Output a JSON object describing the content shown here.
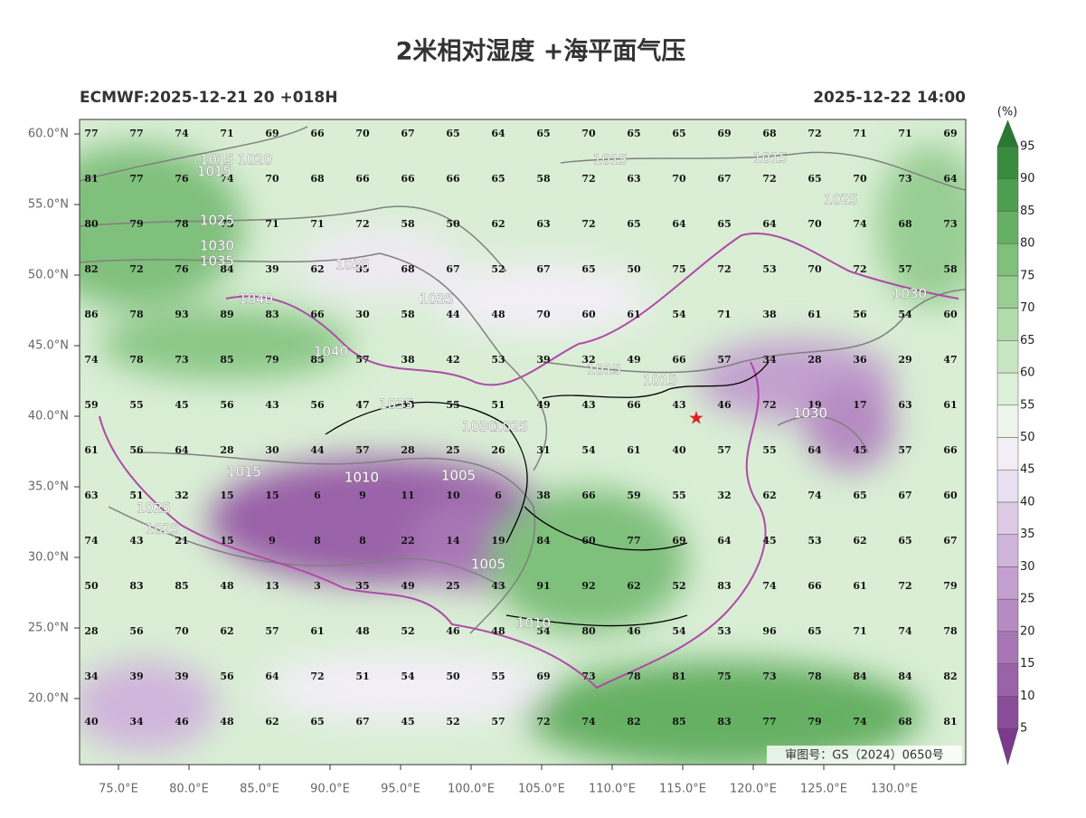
{
  "header": {
    "title": "2米相对湿度 +海平面气压",
    "left": "ECMWF:2025-12-21 20 +018H",
    "right": "2025-12-22 14:00"
  },
  "map": {
    "lat_ticks": [
      {
        "value": 60,
        "label": "60.0°N"
      },
      {
        "value": 55,
        "label": "55.0°N"
      },
      {
        "value": 50,
        "label": "50.0°N"
      },
      {
        "value": 45,
        "label": "45.0°N"
      },
      {
        "value": 40,
        "label": "40.0°N"
      },
      {
        "value": 35,
        "label": "35.0°N"
      },
      {
        "value": 30,
        "label": "30.0°N"
      },
      {
        "value": 25,
        "label": "25.0°N"
      },
      {
        "value": 20,
        "label": "20.0°N"
      }
    ],
    "lon_ticks": [
      {
        "value": 75,
        "label": "75.0°E"
      },
      {
        "value": 80,
        "label": "80.0°E"
      },
      {
        "value": 85,
        "label": "85.0°E"
      },
      {
        "value": 90,
        "label": "90.0°E"
      },
      {
        "value": 95,
        "label": "95.0°E"
      },
      {
        "value": 100,
        "label": "100.0°E"
      },
      {
        "value": 105,
        "label": "105.0°E"
      },
      {
        "value": 110,
        "label": "110.0°E"
      },
      {
        "value": 115,
        "label": "115.0°E"
      },
      {
        "value": 120,
        "label": "120.0°E"
      },
      {
        "value": 125,
        "label": "125.0°E"
      },
      {
        "value": 130,
        "label": "130.0°E"
      }
    ],
    "humidity_grid": [
      [
        77,
        77,
        74,
        71,
        69,
        66,
        70,
        67,
        65,
        64,
        65,
        70,
        65,
        65,
        69,
        68,
        72,
        71,
        71,
        69
      ],
      [
        81,
        77,
        76,
        74,
        70,
        68,
        66,
        66,
        66,
        65,
        58,
        72,
        63,
        70,
        67,
        72,
        65,
        70,
        73,
        64
      ],
      [
        80,
        79,
        78,
        73,
        71,
        71,
        72,
        58,
        50,
        62,
        63,
        72,
        65,
        64,
        65,
        64,
        70,
        74,
        68,
        73
      ],
      [
        82,
        72,
        76,
        84,
        39,
        62,
        35,
        68,
        67,
        52,
        67,
        65,
        50,
        75,
        72,
        53,
        70,
        72,
        57,
        58
      ],
      [
        86,
        78,
        93,
        89,
        83,
        66,
        30,
        58,
        44,
        48,
        70,
        60,
        61,
        54,
        71,
        38,
        61,
        56,
        54,
        60
      ],
      [
        74,
        78,
        73,
        85,
        79,
        85,
        57,
        38,
        42,
        53,
        39,
        32,
        49,
        66,
        57,
        34,
        28,
        36,
        29,
        47
      ],
      [
        59,
        55,
        45,
        56,
        43,
        56,
        47,
        35,
        55,
        51,
        49,
        43,
        66,
        43,
        46,
        72,
        19,
        17,
        63,
        61
      ],
      [
        61,
        56,
        64,
        28,
        30,
        44,
        57,
        28,
        25,
        26,
        31,
        54,
        61,
        40,
        57,
        55,
        64,
        45,
        57,
        66
      ],
      [
        63,
        51,
        32,
        15,
        15,
        6,
        9,
        11,
        10,
        6,
        38,
        66,
        59,
        55,
        32,
        62,
        74,
        65,
        67,
        60
      ],
      [
        74,
        43,
        21,
        15,
        9,
        8,
        8,
        22,
        14,
        19,
        84,
        60,
        77,
        69,
        64,
        45,
        53,
        62,
        65,
        67
      ],
      [
        50,
        83,
        85,
        48,
        13,
        3,
        35,
        49,
        25,
        43,
        91,
        92,
        62,
        52,
        83,
        74,
        66,
        61,
        72,
        79
      ],
      [
        28,
        56,
        70,
        62,
        57,
        61,
        48,
        52,
        46,
        48,
        54,
        80,
        46,
        54,
        53,
        96,
        65,
        71,
        74,
        78
      ],
      [
        34,
        39,
        39,
        56,
        64,
        72,
        51,
        54,
        50,
        55,
        69,
        73,
        78,
        81,
        75,
        73,
        78,
        84,
        84,
        82
      ],
      [
        40,
        34,
        46,
        48,
        62,
        65,
        67,
        45,
        52,
        57,
        72,
        74,
        82,
        85,
        83,
        77,
        79,
        74,
        68,
        81
      ]
    ],
    "isobar_labels": [
      "1015",
      "1020",
      "1015",
      "1025",
      "1030",
      "1035",
      "1035",
      "1040",
      "1035",
      "1040",
      "1035",
      "1030",
      "1025",
      "1015",
      "1010",
      "1005",
      "1025",
      "1025",
      "1005",
      "1010",
      "1015",
      "1015",
      "1015",
      "1015",
      "1025",
      "1030",
      "1030"
    ],
    "approval": "审图号：GS（2024）0650号"
  },
  "colorbar": {
    "unit": "(%)",
    "levels": [
      5,
      10,
      15,
      20,
      25,
      30,
      35,
      40,
      45,
      50,
      55,
      60,
      65,
      70,
      75,
      80,
      85,
      90,
      95
    ],
    "colors": [
      "#7b3a8c",
      "#8a4d9a",
      "#9a62a8",
      "#a876b5",
      "#b68bc2",
      "#c3a0cf",
      "#d0b5db",
      "#ddcbe6",
      "#e8dff0",
      "#f2eef6",
      "#eef6ec",
      "#dcefd8",
      "#c8e6c3",
      "#b2dbac",
      "#98ce93",
      "#7fc07b",
      "#66b064",
      "#4e9e50",
      "#398c3f",
      "#277a30"
    ]
  }
}
